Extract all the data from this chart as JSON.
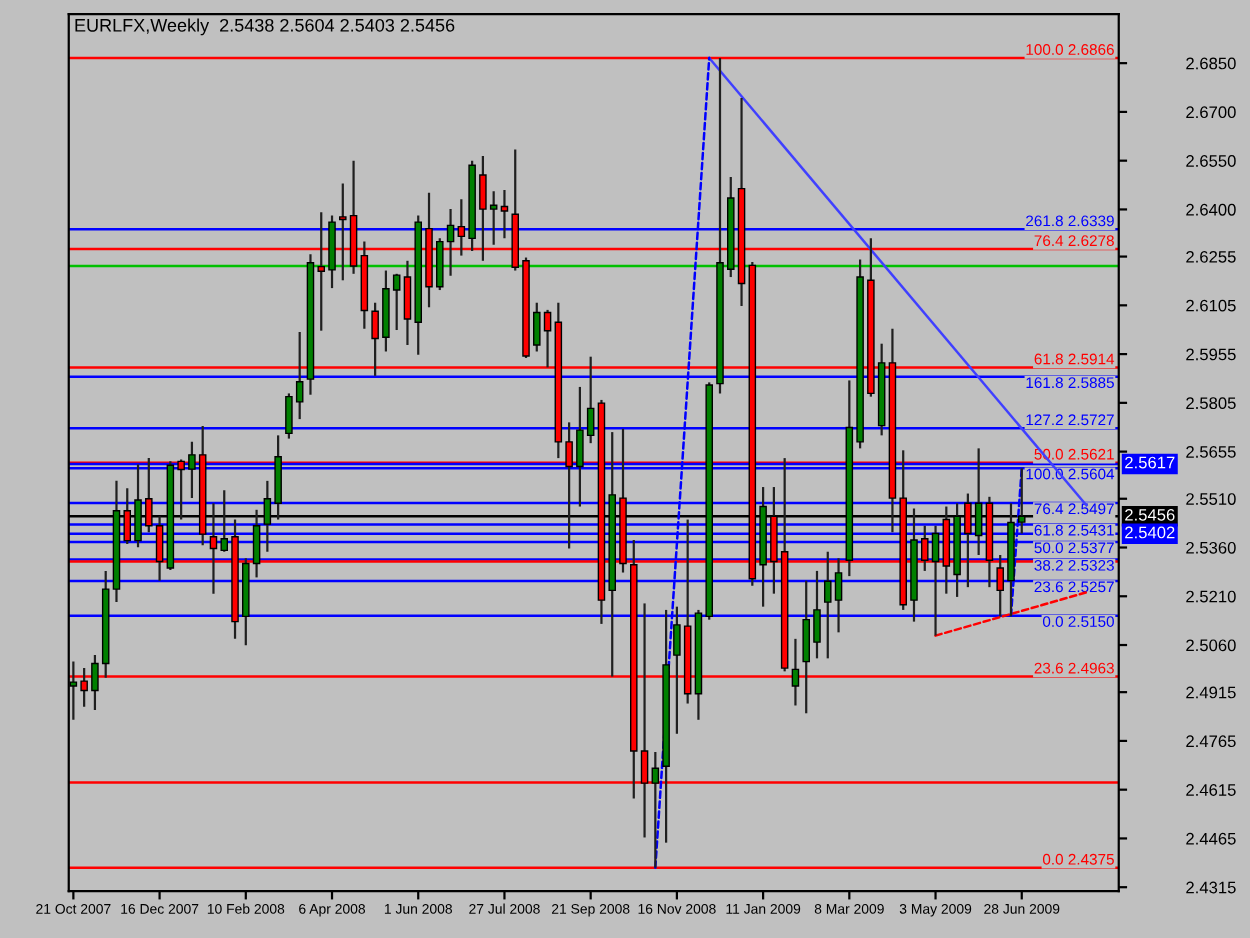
{
  "chart_data": {
    "type": "candlestick",
    "title": "EURLFX,Weekly  2.5438 2.5604 2.5403 2.5456",
    "x": [
      "2007-10-21",
      "2007-10-28",
      "2007-11-04",
      "2007-11-11",
      "2007-11-18",
      "2007-11-25",
      "2007-12-02",
      "2007-12-09",
      "2007-12-16",
      "2007-12-23",
      "2007-12-30",
      "2008-01-06",
      "2008-01-13",
      "2008-01-20",
      "2008-01-27",
      "2008-02-03",
      "2008-02-10",
      "2008-02-17",
      "2008-02-24",
      "2008-03-02",
      "2008-03-09",
      "2008-03-16",
      "2008-03-23",
      "2008-03-30",
      "2008-04-06",
      "2008-04-13",
      "2008-04-20",
      "2008-04-27",
      "2008-05-04",
      "2008-05-11",
      "2008-05-18",
      "2008-05-25",
      "2008-06-01",
      "2008-06-08",
      "2008-06-15",
      "2008-06-22",
      "2008-06-29",
      "2008-07-06",
      "2008-07-13",
      "2008-07-20",
      "2008-07-27",
      "2008-08-03",
      "2008-08-10",
      "2008-08-17",
      "2008-08-24",
      "2008-08-31",
      "2008-09-07",
      "2008-09-14",
      "2008-09-21",
      "2008-09-28",
      "2008-10-05",
      "2008-10-12",
      "2008-10-19",
      "2008-10-26",
      "2008-11-02",
      "2008-11-09",
      "2008-11-16",
      "2008-11-23",
      "2008-11-30",
      "2008-12-07",
      "2008-12-14",
      "2008-12-21",
      "2008-12-28",
      "2009-01-04",
      "2009-01-11",
      "2009-01-18",
      "2009-01-25",
      "2009-02-01",
      "2009-02-08",
      "2009-02-15",
      "2009-02-22",
      "2009-03-01",
      "2009-03-08",
      "2009-03-15",
      "2009-03-22",
      "2009-03-29",
      "2009-04-05",
      "2009-04-12",
      "2009-04-19",
      "2009-04-26",
      "2009-05-03",
      "2009-05-10",
      "2009-05-17",
      "2009-05-24",
      "2009-05-31",
      "2009-06-07",
      "2009-06-14",
      "2009-06-21",
      "2009-06-28"
    ],
    "ohlc": [
      [
        2.4934,
        2.5009,
        2.483,
        2.4946
      ],
      [
        2.4949,
        2.4989,
        2.487,
        2.492
      ],
      [
        2.492,
        2.5029,
        2.486,
        2.5003
      ],
      [
        2.5003,
        2.5288,
        2.4959,
        2.5232
      ],
      [
        2.5232,
        2.5565,
        2.5192,
        2.5473
      ],
      [
        2.5473,
        2.5542,
        2.5371,
        2.5381
      ],
      [
        2.5381,
        2.5615,
        2.5361,
        2.5506
      ],
      [
        2.551,
        2.5635,
        2.5407,
        2.5427
      ],
      [
        2.5427,
        2.5456,
        2.5258,
        2.5317
      ],
      [
        2.5297,
        2.5625,
        2.5291,
        2.5613
      ],
      [
        2.5625,
        2.5631,
        2.5446,
        2.56
      ],
      [
        2.5601,
        2.5685,
        2.5512,
        2.5645
      ],
      [
        2.5645,
        2.5734,
        2.5367,
        2.5401
      ],
      [
        2.5393,
        2.5496,
        2.5218,
        2.5357
      ],
      [
        2.5351,
        2.5536,
        2.5347,
        2.5387
      ],
      [
        2.5393,
        2.5446,
        2.5079,
        2.5132
      ],
      [
        2.5148,
        2.5327,
        2.5059,
        2.5311
      ],
      [
        2.5311,
        2.5476,
        2.5268,
        2.5427
      ],
      [
        2.5432,
        2.5565,
        2.5347,
        2.551
      ],
      [
        2.5496,
        2.5705,
        2.5446,
        2.5639
      ],
      [
        2.5711,
        2.5834,
        2.5695,
        2.5824
      ],
      [
        2.5808,
        2.6023,
        2.5755,
        2.587
      ],
      [
        2.5878,
        2.6262,
        2.583,
        2.6236
      ],
      [
        2.6224,
        2.6391,
        2.6027,
        2.621
      ],
      [
        2.6214,
        2.6381,
        2.6158,
        2.6361
      ],
      [
        2.6377,
        2.648,
        2.6182,
        2.6369
      ],
      [
        2.6381,
        2.655,
        2.6202,
        2.6226
      ],
      [
        2.6258,
        2.6301,
        2.6033,
        2.6089
      ],
      [
        2.6087,
        2.6113,
        2.5888,
        2.6003
      ],
      [
        2.6007,
        2.6212,
        2.5963,
        2.6156
      ],
      [
        2.6152,
        2.6202,
        2.6029,
        2.6198
      ],
      [
        2.6192,
        2.6242,
        2.5983,
        2.6063
      ],
      [
        2.6053,
        2.6381,
        2.5953,
        2.6361
      ],
      [
        2.6341,
        2.6451,
        2.6099,
        2.6162
      ],
      [
        2.6162,
        2.6311,
        2.6152,
        2.6301
      ],
      [
        2.6301,
        2.6401,
        2.6196,
        2.6351
      ],
      [
        2.6347,
        2.6431,
        2.6258,
        2.6317
      ],
      [
        2.6311,
        2.655,
        2.6272,
        2.6536
      ],
      [
        2.6506,
        2.6564,
        2.6242,
        2.6401
      ],
      [
        2.6401,
        2.6456,
        2.6291,
        2.6413
      ],
      [
        2.6409,
        2.646,
        2.6311,
        2.6395
      ],
      [
        2.6385,
        2.6584,
        2.6212,
        2.6222
      ],
      [
        2.6242,
        2.6252,
        2.5943,
        2.5949
      ],
      [
        2.5983,
        2.6113,
        2.5963,
        2.6083
      ],
      [
        2.6083,
        2.6091,
        2.5914,
        2.6027
      ],
      [
        2.6053,
        2.6113,
        2.5635,
        2.5685
      ],
      [
        2.5685,
        2.5745,
        2.5357,
        2.5609
      ],
      [
        2.5609,
        2.5854,
        2.5486,
        2.5721
      ],
      [
        2.5705,
        2.5947,
        2.5681,
        2.5788
      ],
      [
        2.5804,
        2.5814,
        2.5125,
        2.5198
      ],
      [
        2.5228,
        2.5715,
        2.4963,
        2.5522
      ],
      [
        2.5512,
        2.5725,
        2.5283,
        2.5311
      ],
      [
        2.5307,
        2.5383,
        2.4588,
        2.4734
      ],
      [
        2.4734,
        2.5188,
        2.4468,
        2.4635
      ],
      [
        2.4635,
        2.4731,
        2.4375,
        2.4681
      ],
      [
        2.4687,
        2.5168,
        2.4452,
        2.4999
      ],
      [
        2.5029,
        2.5178,
        2.4787,
        2.5122
      ],
      [
        2.5118,
        2.5446,
        2.488,
        2.491
      ],
      [
        2.491,
        2.5168,
        2.483,
        2.5158
      ],
      [
        2.5148,
        2.5868,
        2.5138,
        2.586
      ],
      [
        2.5864,
        2.6866,
        2.5834,
        2.6236
      ],
      [
        2.6216,
        2.65,
        2.6192,
        2.6435
      ],
      [
        2.6464,
        2.6743,
        2.6103,
        2.6172
      ],
      [
        2.6228,
        2.6238,
        2.5242,
        2.5264
      ],
      [
        2.5307,
        2.5546,
        2.5178,
        2.5486
      ],
      [
        2.5456,
        2.5546,
        2.5218,
        2.5317
      ],
      [
        2.5347,
        2.5635,
        2.4979,
        2.4989
      ],
      [
        2.4934,
        2.5079,
        2.4874,
        2.4985
      ],
      [
        2.5009,
        2.5258,
        2.485,
        2.5138
      ],
      [
        2.5069,
        2.5288,
        2.5019,
        2.5168
      ],
      [
        2.5192,
        2.5347,
        2.5019,
        2.5256
      ],
      [
        2.5198,
        2.5327,
        2.5099,
        2.5282
      ],
      [
        2.5321,
        2.5874,
        2.5272,
        2.5729
      ],
      [
        2.5685,
        2.6246,
        2.5665,
        2.6192
      ],
      [
        2.6182,
        2.6311,
        2.5824,
        2.5834
      ],
      [
        2.5735,
        2.5987,
        2.5705,
        2.5928
      ],
      [
        2.5928,
        2.6033,
        2.5407,
        2.5512
      ],
      [
        2.5512,
        2.5659,
        2.5168,
        2.5184
      ],
      [
        2.5198,
        2.548,
        2.5132,
        2.5383
      ],
      [
        2.5387,
        2.5427,
        2.5288,
        2.5321
      ],
      [
        2.5317,
        2.5427,
        2.5089,
        2.5403
      ],
      [
        2.5446,
        2.5486,
        2.5218,
        2.5303
      ],
      [
        2.5277,
        2.5496,
        2.5208,
        2.5456
      ],
      [
        2.5496,
        2.5526,
        2.5238,
        2.5403
      ],
      [
        2.5397,
        2.5665,
        2.5337,
        2.5496
      ],
      [
        2.5496,
        2.5516,
        2.5238,
        2.5321
      ],
      [
        2.5297,
        2.5337,
        2.5148,
        2.5228
      ],
      [
        2.5258,
        2.5496,
        2.5148,
        2.5437
      ],
      [
        2.5438,
        2.5604,
        2.5403,
        2.5456
      ]
    ],
    "series": [
      {
        "type": "line",
        "x": [
          "2008-12-07",
          "2009-08-09"
        ],
        "values": [
          2.6866,
          2.549
        ],
        "color": "#4040ff",
        "line_style": "solid"
      },
      {
        "type": "line",
        "x": [
          "2008-11-02",
          "2008-12-07"
        ],
        "values": [
          2.4375,
          2.6866
        ],
        "color": "#0000ff",
        "line_style": "dashed"
      },
      {
        "type": "line",
        "x": [
          "2009-05-03",
          "2009-08-09"
        ],
        "values": [
          2.5089,
          2.5222
        ],
        "color": "#ff0000",
        "line_style": "dashed"
      },
      {
        "type": "line",
        "x": [
          "2009-06-21",
          "2009-06-28"
        ],
        "values": [
          2.515,
          2.5604
        ],
        "color": "#0000ff",
        "line_style": "dashed"
      }
    ],
    "ref_lines": [
      {
        "axis": "y",
        "value": 2.6866,
        "label": "100.0 2.6866",
        "color": "#ff0000"
      },
      {
        "axis": "y",
        "value": 2.6339,
        "label": "261.8 2.6339",
        "color": "#0000ff"
      },
      {
        "axis": "y",
        "value": 2.6278,
        "label": "76.4 2.6278",
        "color": "#ff0000"
      },
      {
        "axis": "y",
        "value": 2.6226,
        "color": "#00c000"
      },
      {
        "axis": "y",
        "value": 2.5914,
        "label": "61.8 2.5914",
        "color": "#ff0000"
      },
      {
        "axis": "y",
        "value": 2.5885,
        "label": "161.8 2.5885",
        "color": "#0000ff"
      },
      {
        "axis": "y",
        "value": 2.5727,
        "label": "127.2 2.5727",
        "color": "#0000ff"
      },
      {
        "axis": "y",
        "value": 2.5621,
        "label": "50.0 2.5621",
        "color": "#ff0000"
      },
      {
        "axis": "y",
        "value": 2.5617,
        "color": "#0000ff"
      },
      {
        "axis": "y",
        "value": 2.5604,
        "label": "100.0 2.5604",
        "color": "#0000ff"
      },
      {
        "axis": "y",
        "value": 2.5497,
        "label": "76.4 2.5497",
        "color": "#0000ff"
      },
      {
        "axis": "y",
        "value": 2.5456,
        "color": "#000000"
      },
      {
        "axis": "y",
        "value": 2.5431,
        "label": "61.8 2.5431",
        "color": "#0000ff"
      },
      {
        "axis": "y",
        "value": 2.5402,
        "color": "#0000ff"
      },
      {
        "axis": "y",
        "value": 2.5377,
        "label": "50.0 2.5377",
        "color": "#0000ff"
      },
      {
        "axis": "y",
        "value": 2.5323,
        "label": "38.2 2.5323",
        "color": "#0000ff"
      },
      {
        "axis": "y",
        "value": 2.5317,
        "color": "#ff0000"
      },
      {
        "axis": "y",
        "value": 2.5257,
        "label": "23.6 2.5257",
        "color": "#0000ff"
      },
      {
        "axis": "y",
        "value": 2.515,
        "label": "0.0 2.5150",
        "color": "#0000ff"
      },
      {
        "axis": "y",
        "value": 2.4963,
        "label": "23.6 2.4963",
        "color": "#ff0000"
      },
      {
        "axis": "y",
        "value": 2.4637,
        "color": "#ff0000"
      },
      {
        "axis": "y",
        "value": 2.4375,
        "label": "0.0 2.4375",
        "color": "#ff0000"
      }
    ],
    "annotations": [
      {
        "text": "2.5617",
        "x": "2009-08-30",
        "y": 2.5617
      },
      {
        "text": "2.5456",
        "x": "2009-08-30",
        "y": 2.5456
      },
      {
        "text": "2.5402",
        "x": "2009-08-30",
        "y": 2.5402
      }
    ],
    "xlim": [
      "2007-10-18",
      "2009-08-30"
    ],
    "xticks": [
      {
        "value": "2007-10-21",
        "label": "21 Oct 2007"
      },
      {
        "value": "2007-12-16",
        "label": "16 Dec 2007"
      },
      {
        "value": "2008-02-10",
        "label": "10 Feb 2008"
      },
      {
        "value": "2008-04-06",
        "label": "6 Apr 2008"
      },
      {
        "value": "2008-06-01",
        "label": "1 Jun 2008"
      },
      {
        "value": "2008-07-27",
        "label": "27 Jul 2008"
      },
      {
        "value": "2008-09-21",
        "label": "21 Sep 2008"
      },
      {
        "value": "2008-11-16",
        "label": "16 Nov 2008"
      },
      {
        "value": "2009-01-11",
        "label": "11 Jan 2009"
      },
      {
        "value": "2009-03-08",
        "label": "8 Mar 2009"
      },
      {
        "value": "2009-05-03",
        "label": "3 May 2009"
      },
      {
        "value": "2009-06-28",
        "label": "28 Jun 2009"
      }
    ],
    "ylim": [
      2.4303,
      2.7001
    ],
    "yticks": [
      {
        "value": 2.685,
        "label": "2.6850"
      },
      {
        "value": 2.67,
        "label": "2.6700"
      },
      {
        "value": 2.655,
        "label": "2.6550"
      },
      {
        "value": 2.64,
        "label": "2.6400"
      },
      2.6255,
      2.6105,
      2.5955,
      2.5805,
      2.5655,
      {
        "value": 2.551,
        "label": "2.5510"
      },
      {
        "value": 2.536,
        "label": "2.5360"
      },
      {
        "value": 2.521,
        "label": "2.5210"
      },
      {
        "value": 2.506,
        "label": "2.5060"
      },
      2.4915,
      2.4765,
      2.4615,
      2.4465,
      2.4315
    ],
    "grid": false,
    "legend": false
  }
}
